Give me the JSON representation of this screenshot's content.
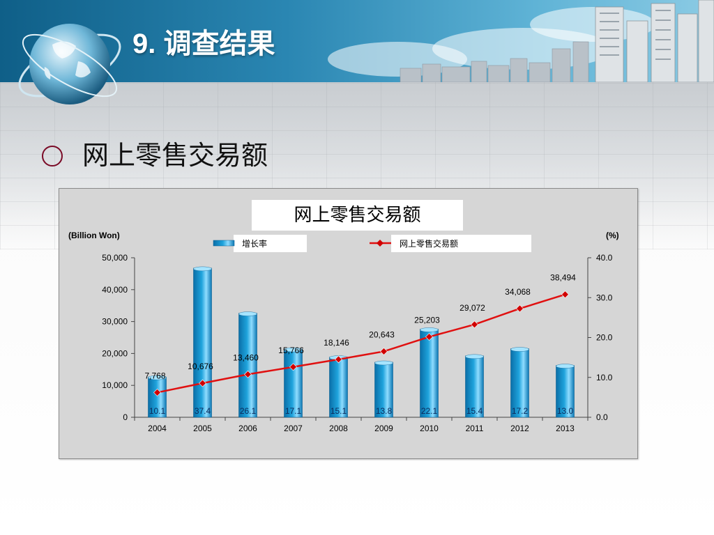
{
  "slide": {
    "title": "9. 调查结果",
    "bullet": "网上零售交易额"
  },
  "colors": {
    "bar": "#1fa3dc",
    "line": "#e01010",
    "marker": "#d00000",
    "title_color": "#ffffff"
  },
  "chart_data": {
    "type": "bar+line",
    "title": "网上零售交易额",
    "left_axis_label": "(Billion Won)",
    "right_axis_label": "(%)",
    "categories": [
      "2004",
      "2005",
      "2006",
      "2007",
      "2008",
      "2009",
      "2010",
      "2011",
      "2012",
      "2013"
    ],
    "left_ticks": [
      "0",
      "10,000",
      "20,000",
      "30,000",
      "40,000",
      "50,000"
    ],
    "right_ticks": [
      "0.0",
      "10.0",
      "20.0",
      "30.0",
      "40.0"
    ],
    "left_ylim": [
      0,
      50000
    ],
    "right_ylim": [
      0,
      40
    ],
    "legend_placement": "top",
    "series": [
      {
        "name": "增长率",
        "type": "bar",
        "axis": "right",
        "values": [
          10.1,
          37.4,
          26.1,
          17.1,
          15.1,
          13.8,
          22.1,
          15.4,
          17.2,
          13.0
        ],
        "labels": [
          "10.1",
          "37.4",
          "26.1",
          "17.1",
          "15.1",
          "13.8",
          "22.1",
          "15.4",
          "17.2",
          "13.0"
        ]
      },
      {
        "name": "网上零售交易额",
        "type": "line",
        "axis": "left",
        "values": [
          7768,
          10676,
          13460,
          15766,
          18146,
          20643,
          25203,
          29072,
          34068,
          38494
        ],
        "labels": [
          "7,768",
          "10,676",
          "13,460",
          "15,766",
          "18,146",
          "20,643",
          "25,203",
          "29,072",
          "34,068",
          "38,494"
        ]
      }
    ]
  }
}
